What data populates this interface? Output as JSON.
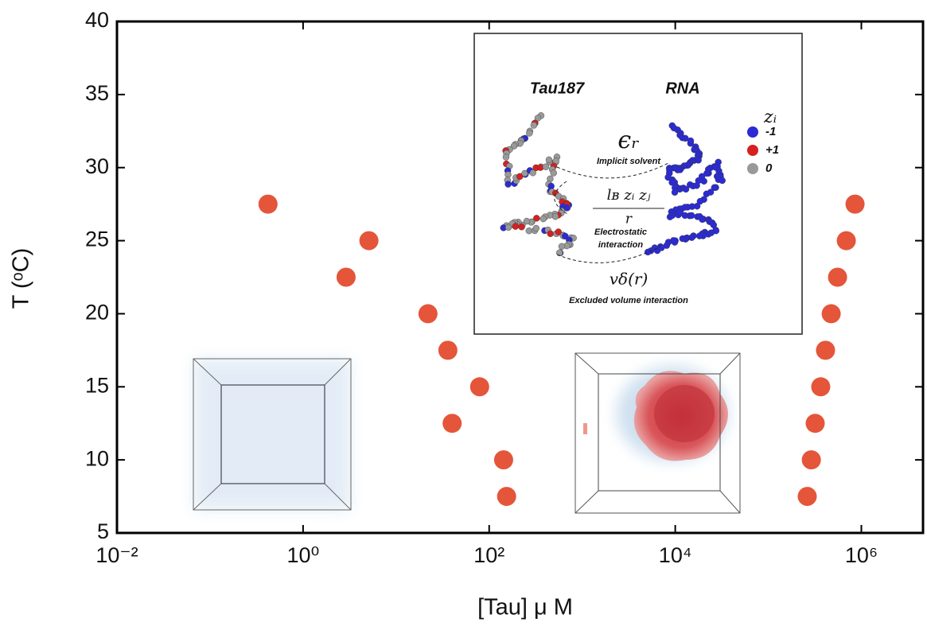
{
  "chart_data": {
    "type": "scatter",
    "x_label": "[Tau] μ M",
    "y_label": "T (ᵒC)",
    "log_x": true,
    "xlim": [
      0.01,
      4600000
    ],
    "ylim": [
      5,
      40
    ],
    "xticks": [
      {
        "value": 0.01,
        "label": "10⁻²"
      },
      {
        "value": 1,
        "label": "10⁰"
      },
      {
        "value": 100,
        "label": "10²"
      },
      {
        "value": 10000,
        "label": "10⁴"
      },
      {
        "value": 1000000,
        "label": "10⁶"
      }
    ],
    "yticks": [
      5,
      10,
      15,
      20,
      25,
      30,
      35,
      40
    ],
    "series": [
      {
        "color": "#e4553a",
        "x": [
          0.42,
          5.1,
          2.9,
          22,
          36,
          79,
          40,
          143,
          154,
          855000,
          689000,
          555000,
          474000,
          412000,
          366000,
          319000,
          290000,
          262000
        ],
        "values": [
          27.5,
          25,
          22.5,
          20,
          17.5,
          15,
          12.5,
          10,
          7.5,
          27.5,
          25,
          22.5,
          20,
          17.5,
          15,
          12.5,
          10,
          7.5
        ]
      }
    ],
    "inset": {
      "left_title": "Tau187",
      "right_title": "RNA",
      "legend_title": "zᵢ",
      "legend": [
        {
          "name": "-1",
          "color": "#2b2bd6"
        },
        {
          "name": "+1",
          "color": "#d62020"
        },
        {
          "name": "0",
          "color": "#999999"
        }
      ],
      "solvent_symbol": "ϵᵣ",
      "solvent_label": "Implicit solvent",
      "electrostatic_numerator": "lʙ zᵢ zⱼ",
      "electrostatic_denominator": "r",
      "electrostatic_label": [
        "Electrostatic",
        "interaction"
      ],
      "volume_symbol": "vδ(r)",
      "volume_label": "Excluded volume interaction"
    }
  }
}
